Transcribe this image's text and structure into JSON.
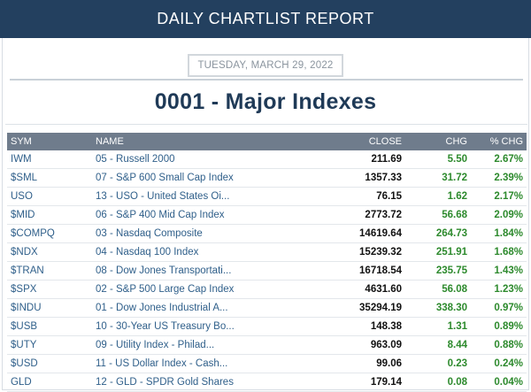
{
  "header": {
    "title": "DAILY CHARTLIST REPORT"
  },
  "report": {
    "date": "TUESDAY, MARCH 29, 2022",
    "title": "0001 - Major Indexes"
  },
  "table": {
    "columns": [
      "SYM",
      "NAME",
      "CLOSE",
      "CHG",
      "% CHG"
    ],
    "rows": [
      {
        "sym": "IWM",
        "name": "05 - Russell 2000",
        "close": "211.69",
        "chg": "5.50",
        "pct": "2.67%"
      },
      {
        "sym": "$SML",
        "name": "07 - S&P 600 Small Cap Index",
        "close": "1357.33",
        "chg": "31.72",
        "pct": "2.39%"
      },
      {
        "sym": "USO",
        "name": "13 - USO - United States Oi...",
        "close": "76.15",
        "chg": "1.62",
        "pct": "2.17%"
      },
      {
        "sym": "$MID",
        "name": "06 - S&P 400 Mid Cap Index",
        "close": "2773.72",
        "chg": "56.68",
        "pct": "2.09%"
      },
      {
        "sym": "$COMPQ",
        "name": "03 - Nasdaq Composite",
        "close": "14619.64",
        "chg": "264.73",
        "pct": "1.84%"
      },
      {
        "sym": "$NDX",
        "name": "04 - Nasdaq 100 Index",
        "close": "15239.32",
        "chg": "251.91",
        "pct": "1.68%"
      },
      {
        "sym": "$TRAN",
        "name": "08 - Dow Jones Transportati...",
        "close": "16718.54",
        "chg": "235.75",
        "pct": "1.43%"
      },
      {
        "sym": "$SPX",
        "name": "02 - S&P 500 Large Cap Index",
        "close": "4631.60",
        "chg": "56.08",
        "pct": "1.23%"
      },
      {
        "sym": "$INDU",
        "name": "01 - Dow Jones Industrial A...",
        "close": "35294.19",
        "chg": "338.30",
        "pct": "0.97%"
      },
      {
        "sym": "$USB",
        "name": "10 - 30-Year US Treasury Bo...",
        "close": "148.38",
        "chg": "1.31",
        "pct": "0.89%"
      },
      {
        "sym": "$UTY",
        "name": "09 - Utility Index - Philad...",
        "close": "963.09",
        "chg": "8.44",
        "pct": "0.88%"
      },
      {
        "sym": "$USD",
        "name": "11 - US Dollar Index - Cash...",
        "close": "99.06",
        "chg": "0.23",
        "pct": "0.24%"
      },
      {
        "sym": "GLD",
        "name": "12 - GLD - SPDR Gold Shares",
        "close": "179.14",
        "chg": "0.08",
        "pct": "0.04%"
      }
    ]
  },
  "colors": {
    "header_bg": "#23405f",
    "table_header_bg": "#6f7c8c",
    "link": "#2f5f8a",
    "positive": "#2d8a2d"
  }
}
